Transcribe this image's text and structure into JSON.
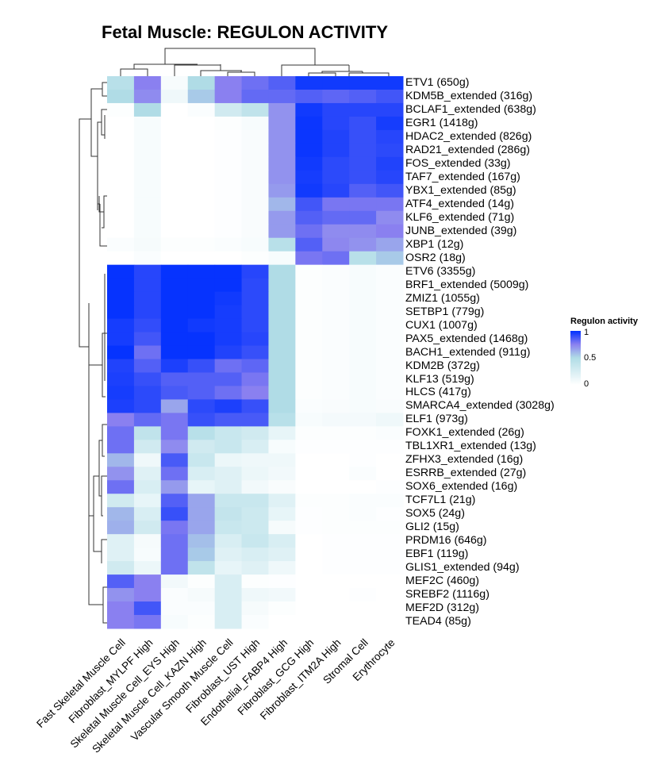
{
  "chart_data": {
    "type": "heatmap",
    "title": "Fetal Muscle: REGULON ACTIVITY",
    "legend": {
      "title": "Regulon activity",
      "ticks": [
        "0",
        "0.5",
        "1"
      ],
      "placement": "right",
      "range": [
        0,
        1
      ]
    },
    "colors": {
      "low": "#ffffff",
      "mid": "#b0dce6",
      "midhigh": "#8a80f0",
      "high": "#0030ff"
    },
    "columns": [
      "Fast Skeletal Muscle Cell",
      "Fibroblast_MYLPF High",
      "Skeletal Muscle Cell_EYS High",
      "Skeletal Muscle Cell_KAZN High",
      "Vascular Smooth Muscle Cell",
      "Fibroblast_UST High",
      "Endothelial_FABP4 High",
      "Fibroblast_GCG High",
      "Fibroblast_ITM2A High",
      "Stromal Cell",
      "Erythrocyte"
    ],
    "rows": [
      "ETV1 (650g)",
      "KDM5B_extended (316g)",
      "BCLAF1_extended (638g)",
      "EGR1 (1418g)",
      "HDAC2_extended (826g)",
      "RAD21_extended (286g)",
      "FOS_extended (33g)",
      "TAF7_extended (167g)",
      "YBX1_extended (85g)",
      "ATF4_extended (14g)",
      "KLF6_extended (71g)",
      "JUNB_extended (39g)",
      "XBP1 (12g)",
      "OSR2 (18g)",
      "ETV6 (3355g)",
      "BRF1_extended (5009g)",
      "ZMIZ1 (1055g)",
      "SETBP1 (779g)",
      "CUX1 (1007g)",
      "PAX5_extended (1468g)",
      "BACH1_extended (911g)",
      "KDM2B (372g)",
      "KLF13 (519g)",
      "HLCS (417g)",
      "SMARCA4_extended (3028g)",
      "ELF1 (973g)",
      "FOXK1_extended (26g)",
      "TBL1XR1_extended (13g)",
      "ZFHX3_extended (16g)",
      "ESRRB_extended (27g)",
      "SOX6_extended (16g)",
      "TCF7L1 (21g)",
      "SOX5 (24g)",
      "GLI2 (15g)",
      "PRDM16 (646g)",
      "EBF1 (119g)",
      "GLIS1_extended (94g)",
      "MEF2C (460g)",
      "SREBF2 (1116g)",
      "MEF2D (312g)",
      "TEAD4 (85g)"
    ],
    "values": [
      [
        0.45,
        0.75,
        0.05,
        0.5,
        0.75,
        0.8,
        0.85,
        0.97,
        0.97,
        0.97,
        0.97
      ],
      [
        0.5,
        0.72,
        0.1,
        0.55,
        0.75,
        0.82,
        0.82,
        0.85,
        0.83,
        0.85,
        0.88
      ],
      [
        0.02,
        0.5,
        0.0,
        0.03,
        0.3,
        0.4,
        0.7,
        0.97,
        0.93,
        0.93,
        0.93
      ],
      [
        0.0,
        0.05,
        0.0,
        0.0,
        0.02,
        0.05,
        0.7,
        0.98,
        0.93,
        0.9,
        0.96
      ],
      [
        0.0,
        0.05,
        0.0,
        0.0,
        0.01,
        0.04,
        0.7,
        0.98,
        0.94,
        0.9,
        0.93
      ],
      [
        0.0,
        0.05,
        0.0,
        0.0,
        0.01,
        0.04,
        0.7,
        0.98,
        0.94,
        0.9,
        0.92
      ],
      [
        0.0,
        0.05,
        0.0,
        0.0,
        0.01,
        0.04,
        0.7,
        0.97,
        0.92,
        0.9,
        0.94
      ],
      [
        0.0,
        0.05,
        0.0,
        0.0,
        0.01,
        0.04,
        0.7,
        0.96,
        0.92,
        0.9,
        0.93
      ],
      [
        0.0,
        0.05,
        0.0,
        0.0,
        0.01,
        0.04,
        0.68,
        0.97,
        0.93,
        0.85,
        0.88
      ],
      [
        0.0,
        0.05,
        0.0,
        0.0,
        0.01,
        0.04,
        0.6,
        0.88,
        0.78,
        0.78,
        0.78
      ],
      [
        0.0,
        0.05,
        0.0,
        0.0,
        0.01,
        0.04,
        0.68,
        0.85,
        0.82,
        0.82,
        0.72
      ],
      [
        0.0,
        0.05,
        0.0,
        0.0,
        0.01,
        0.04,
        0.68,
        0.8,
        0.72,
        0.72,
        0.75
      ],
      [
        0.03,
        0.06,
        0.02,
        0.02,
        0.03,
        0.05,
        0.45,
        0.85,
        0.73,
        0.7,
        0.65
      ],
      [
        0.0,
        0.03,
        0.0,
        0.0,
        0.0,
        0.02,
        0.05,
        0.78,
        0.8,
        0.45,
        0.55
      ],
      [
        0.99,
        0.93,
        0.99,
        0.99,
        0.99,
        0.93,
        0.5,
        0.02,
        0.03,
        0.05,
        0.03
      ],
      [
        0.99,
        0.93,
        0.99,
        0.99,
        0.99,
        0.92,
        0.5,
        0.02,
        0.03,
        0.05,
        0.03
      ],
      [
        0.99,
        0.93,
        0.99,
        0.99,
        0.97,
        0.92,
        0.5,
        0.02,
        0.03,
        0.05,
        0.03
      ],
      [
        0.99,
        0.93,
        0.99,
        0.99,
        0.96,
        0.92,
        0.5,
        0.02,
        0.03,
        0.05,
        0.03
      ],
      [
        0.96,
        0.91,
        0.99,
        0.97,
        0.96,
        0.92,
        0.5,
        0.02,
        0.03,
        0.05,
        0.03
      ],
      [
        0.96,
        0.88,
        0.99,
        0.99,
        0.96,
        0.93,
        0.5,
        0.02,
        0.03,
        0.05,
        0.03
      ],
      [
        0.99,
        0.8,
        0.99,
        0.99,
        0.94,
        0.9,
        0.5,
        0.02,
        0.03,
        0.05,
        0.03
      ],
      [
        0.94,
        0.85,
        0.95,
        0.9,
        0.8,
        0.83,
        0.5,
        0.02,
        0.03,
        0.05,
        0.03
      ],
      [
        0.95,
        0.9,
        0.85,
        0.85,
        0.85,
        0.78,
        0.5,
        0.02,
        0.03,
        0.05,
        0.03
      ],
      [
        0.96,
        0.92,
        0.87,
        0.85,
        0.8,
        0.75,
        0.5,
        0.02,
        0.03,
        0.05,
        0.03
      ],
      [
        0.95,
        0.92,
        0.65,
        0.92,
        0.95,
        0.9,
        0.5,
        0.03,
        0.04,
        0.05,
        0.04
      ],
      [
        0.75,
        0.82,
        0.78,
        0.9,
        0.87,
        0.87,
        0.45,
        0.05,
        0.07,
        0.07,
        0.1
      ],
      [
        0.8,
        0.4,
        0.78,
        0.45,
        0.35,
        0.3,
        0.15,
        0.02,
        0.02,
        0.02,
        0.03
      ],
      [
        0.8,
        0.3,
        0.72,
        0.3,
        0.35,
        0.25,
        0.05,
        0.01,
        0.01,
        0.01,
        0.01
      ],
      [
        0.6,
        0.1,
        0.87,
        0.35,
        0.12,
        0.1,
        0.1,
        0.0,
        0.0,
        0.01,
        0.0
      ],
      [
        0.7,
        0.2,
        0.8,
        0.25,
        0.2,
        0.12,
        0.08,
        0.0,
        0.0,
        0.03,
        0.0
      ],
      [
        0.8,
        0.25,
        0.68,
        0.15,
        0.2,
        0.08,
        0.04,
        0.0,
        0.0,
        0.0,
        0.01
      ],
      [
        0.3,
        0.15,
        0.85,
        0.65,
        0.35,
        0.35,
        0.2,
        0.02,
        0.02,
        0.03,
        0.03
      ],
      [
        0.6,
        0.25,
        0.9,
        0.65,
        0.38,
        0.32,
        0.15,
        0.01,
        0.02,
        0.03,
        0.01
      ],
      [
        0.62,
        0.3,
        0.78,
        0.65,
        0.35,
        0.32,
        0.06,
        0.01,
        0.02,
        0.02,
        0.02
      ],
      [
        0.2,
        0.06,
        0.8,
        0.58,
        0.25,
        0.35,
        0.25,
        0.0,
        0.01,
        0.01,
        0.01
      ],
      [
        0.2,
        0.05,
        0.8,
        0.55,
        0.2,
        0.25,
        0.2,
        0.0,
        0.01,
        0.01,
        0.01
      ],
      [
        0.3,
        0.12,
        0.8,
        0.4,
        0.15,
        0.2,
        0.1,
        0.0,
        0.01,
        0.01,
        0.01
      ],
      [
        0.85,
        0.75,
        0.08,
        0.02,
        0.25,
        0.02,
        0.01,
        0.0,
        0.0,
        0.0,
        0.0
      ],
      [
        0.7,
        0.75,
        0.03,
        0.06,
        0.25,
        0.1,
        0.08,
        0.0,
        0.0,
        0.01,
        0.0
      ],
      [
        0.75,
        0.88,
        0.03,
        0.03,
        0.25,
        0.06,
        0.02,
        0.0,
        0.0,
        0.0,
        0.0
      ],
      [
        0.75,
        0.78,
        0.05,
        0.02,
        0.25,
        0.03,
        0.0,
        0.0,
        0.0,
        0.0,
        0.0
      ]
    ]
  }
}
